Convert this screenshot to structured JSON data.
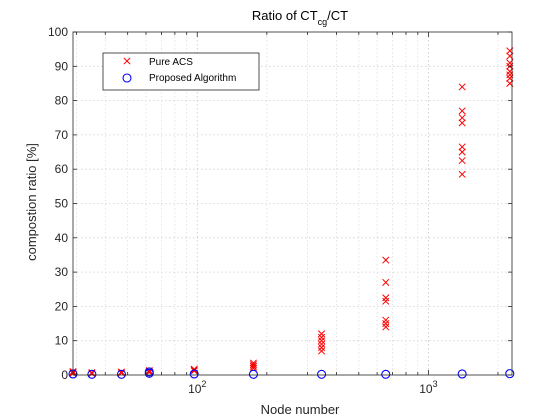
{
  "chart_data": {
    "type": "scatter",
    "title": {
      "prefix": "Ratio of CT",
      "subscript": "cg",
      "suffix": "/CT"
    },
    "xlabel": "Node number",
    "ylabel": "compostion ratio [%]",
    "xscale": "log",
    "xlim": [
      29,
      2300
    ],
    "ylim": [
      0,
      100
    ],
    "yticks": [
      0,
      10,
      20,
      30,
      40,
      50,
      60,
      70,
      80,
      90,
      100
    ],
    "xticks": [
      {
        "value": 100,
        "base": "10",
        "exp": "2"
      },
      {
        "value": 1000,
        "base": "10",
        "exp": "3"
      }
    ],
    "grid": "major and minor, dotted",
    "legend_position": "top-left",
    "series": [
      {
        "name": "Pure ACS",
        "marker": "x",
        "color": "#ff0000",
        "points": [
          [
            29,
            0.5
          ],
          [
            29,
            0.8
          ],
          [
            29,
            1.0
          ],
          [
            35,
            0.4
          ],
          [
            35,
            0.7
          ],
          [
            47,
            0.6
          ],
          [
            47,
            0.9
          ],
          [
            62,
            0.8
          ],
          [
            62,
            1.1
          ],
          [
            62,
            1.3
          ],
          [
            97,
            1.2
          ],
          [
            97,
            1.5
          ],
          [
            97,
            1.7
          ],
          [
            175,
            2.0
          ],
          [
            175,
            2.5
          ],
          [
            175,
            3.0
          ],
          [
            175,
            3.5
          ],
          [
            345,
            7.0
          ],
          [
            345,
            8.0
          ],
          [
            345,
            9.0
          ],
          [
            345,
            10.0
          ],
          [
            345,
            11.0
          ],
          [
            345,
            12.0
          ],
          [
            654,
            14.0
          ],
          [
            654,
            15.0
          ],
          [
            654,
            16.0
          ],
          [
            654,
            21.5
          ],
          [
            654,
            22.5
          ],
          [
            654,
            27.0
          ],
          [
            654,
            33.5
          ],
          [
            1400,
            58.5
          ],
          [
            1400,
            62.5
          ],
          [
            1400,
            65.0
          ],
          [
            1400,
            66.5
          ],
          [
            1400,
            73.5
          ],
          [
            1400,
            75.0
          ],
          [
            1400,
            77.0
          ],
          [
            1400,
            84.0
          ],
          [
            2250,
            85.0
          ],
          [
            2250,
            86.5
          ],
          [
            2250,
            87.5
          ],
          [
            2250,
            88.5
          ],
          [
            2250,
            90.0
          ],
          [
            2250,
            91.0
          ],
          [
            2250,
            93.0
          ],
          [
            2250,
            94.5
          ]
        ]
      },
      {
        "name": "Proposed Algorithm",
        "marker": "o",
        "color": "#0000ff",
        "points": [
          [
            29,
            0.3
          ],
          [
            35,
            0.2
          ],
          [
            47,
            0.2
          ],
          [
            62,
            0.5
          ],
          [
            62,
            0.9
          ],
          [
            97,
            0.3
          ],
          [
            175,
            0.2
          ],
          [
            345,
            0.2
          ],
          [
            654,
            0.2
          ],
          [
            1400,
            0.3
          ],
          [
            2250,
            0.4
          ]
        ]
      }
    ]
  }
}
